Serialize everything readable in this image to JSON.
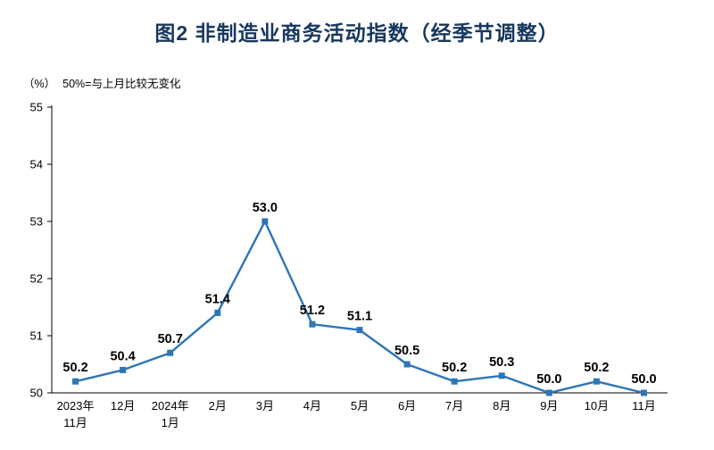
{
  "title": "图2 非制造业商务活动指数（经季节调整）",
  "unit_label": "（%）",
  "note": "50%=与上月比较无变化",
  "colors": {
    "title": "#17375E",
    "line": "#2E75B6",
    "axis": "#000000",
    "text": "#000000"
  },
  "chart_data": {
    "type": "line",
    "title": "图2 非制造业商务活动指数（经季节调整）",
    "categories": [
      "2023年\n11月",
      "12月",
      "2024年\n1月",
      "2月",
      "3月",
      "4月",
      "5月",
      "6月",
      "7月",
      "8月",
      "9月",
      "10月",
      "11月"
    ],
    "values": [
      50.2,
      50.4,
      50.7,
      51.4,
      53.0,
      51.2,
      51.1,
      50.5,
      50.2,
      50.3,
      50.0,
      50.2,
      50.0
    ],
    "xlabel": "",
    "ylabel": "（%）",
    "ylim": [
      50,
      55
    ],
    "yticks": [
      50,
      51,
      52,
      53,
      54,
      55
    ],
    "grid": false,
    "legend": "none",
    "marker": "square",
    "data_labels": true,
    "annotation": "50%=与上月比较无变化"
  }
}
